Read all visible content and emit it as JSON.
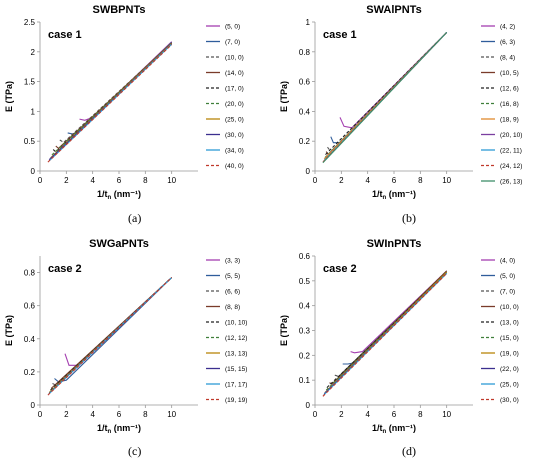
{
  "chart_data": [
    {
      "type": "line",
      "panel_label": "(a)",
      "title": "SWBPNTs",
      "annotation": "case 1",
      "xlabel": "1/t",
      "xlabel_sub": "n",
      "xlabel_unit": "(nm⁻¹)",
      "ylabel": "E (TPa)",
      "xlim": [
        0,
        12
      ],
      "ylim": [
        0,
        2.5
      ],
      "xticks": [
        0,
        2,
        4,
        6,
        8,
        10
      ],
      "yticks": [
        0,
        0.5,
        1,
        1.5,
        2,
        2.5
      ],
      "grid": false,
      "legend": "right",
      "series": [
        {
          "name": "(5, 0)",
          "color": "#a43fb0",
          "dash": "solid",
          "x": [
            3.0,
            3.4,
            4,
            10
          ],
          "y": [
            0.87,
            0.85,
            0.9,
            2.17
          ]
        },
        {
          "name": "(7, 0)",
          "color": "#2f5d9b",
          "dash": "solid",
          "x": [
            2.1,
            2.5,
            3,
            10
          ],
          "y": [
            0.64,
            0.62,
            0.68,
            2.16
          ]
        },
        {
          "name": "(10, 0)",
          "color": "#555555",
          "dash": "dash",
          "x": [
            1.5,
            1.8,
            10
          ],
          "y": [
            0.52,
            0.48,
            2.15
          ]
        },
        {
          "name": "(14, 0)",
          "color": "#7a3b2a",
          "dash": "solid",
          "x": [
            1.2,
            1.4,
            10
          ],
          "y": [
            0.42,
            0.38,
            2.15
          ]
        },
        {
          "name": "(17, 0)",
          "color": "#222222",
          "dash": "dash",
          "x": [
            1.0,
            1.2,
            10
          ],
          "y": [
            0.36,
            0.32,
            2.14
          ]
        },
        {
          "name": "(20, 0)",
          "color": "#3f7f3a",
          "dash": "dash",
          "x": [
            0.9,
            10
          ],
          "y": [
            0.27,
            2.14
          ]
        },
        {
          "name": "(25, 0)",
          "color": "#b8860b",
          "dash": "solid",
          "x": [
            0.8,
            10
          ],
          "y": [
            0.22,
            2.14
          ]
        },
        {
          "name": "(30, 0)",
          "color": "#3b2f8f",
          "dash": "solid",
          "x": [
            0.7,
            10
          ],
          "y": [
            0.19,
            2.13
          ]
        },
        {
          "name": "(34, 0)",
          "color": "#2e9bd6",
          "dash": "solid",
          "x": [
            0.7,
            10
          ],
          "y": [
            0.17,
            2.13
          ]
        },
        {
          "name": "(40, 0)",
          "color": "#c0392b",
          "dash": "dash",
          "x": [
            0.6,
            10
          ],
          "y": [
            0.15,
            2.12
          ]
        }
      ]
    },
    {
      "type": "line",
      "panel_label": "(b)",
      "title": "SWAlPNTs",
      "annotation": "case 1",
      "xlabel": "1/t",
      "xlabel_sub": "n",
      "xlabel_unit": "(nm⁻¹)",
      "ylabel": "E (TPa)",
      "xlim": [
        0,
        12
      ],
      "ylim": [
        0,
        1
      ],
      "xticks": [
        0,
        2,
        4,
        6,
        8,
        10
      ],
      "yticks": [
        0,
        0.2,
        0.4,
        0.6,
        0.8,
        1
      ],
      "grid": false,
      "legend": "right",
      "series": [
        {
          "name": "(4, 2)",
          "color": "#a43fb0",
          "dash": "solid",
          "x": [
            1.9,
            2.2,
            2.8,
            10
          ],
          "y": [
            0.36,
            0.3,
            0.29,
            0.93
          ]
        },
        {
          "name": "(6, 3)",
          "color": "#2f5d9b",
          "dash": "solid",
          "x": [
            1.2,
            1.4,
            2,
            10
          ],
          "y": [
            0.23,
            0.19,
            0.19,
            0.93
          ]
        },
        {
          "name": "(8, 4)",
          "color": "#555555",
          "dash": "dash",
          "x": [
            0.95,
            1.2,
            10
          ],
          "y": [
            0.16,
            0.13,
            0.93
          ]
        },
        {
          "name": "(10, 5)",
          "color": "#7a3b2a",
          "dash": "solid",
          "x": [
            0.85,
            1.0,
            10
          ],
          "y": [
            0.13,
            0.11,
            0.93
          ]
        },
        {
          "name": "(12, 6)",
          "color": "#222222",
          "dash": "dash",
          "x": [
            0.8,
            10
          ],
          "y": [
            0.11,
            0.93
          ]
        },
        {
          "name": "(16, 8)",
          "color": "#3f7f3a",
          "dash": "dash",
          "x": [
            0.75,
            10
          ],
          "y": [
            0.09,
            0.93
          ]
        },
        {
          "name": "(18, 9)",
          "color": "#e08a2e",
          "dash": "solid",
          "x": [
            0.7,
            10
          ],
          "y": [
            0.08,
            0.93
          ]
        },
        {
          "name": "(20, 10)",
          "color": "#7b3fa0",
          "dash": "solid",
          "x": [
            0.7,
            10
          ],
          "y": [
            0.07,
            0.93
          ]
        },
        {
          "name": "(22, 11)",
          "color": "#2e9bd6",
          "dash": "solid",
          "x": [
            0.65,
            10
          ],
          "y": [
            0.065,
            0.93
          ]
        },
        {
          "name": "(24, 12)",
          "color": "#c0392b",
          "dash": "dash",
          "x": [
            0.6,
            10
          ],
          "y": [
            0.06,
            0.93
          ]
        },
        {
          "name": "(26, 13)",
          "color": "#3f8f6a",
          "dash": "solid",
          "x": [
            0.6,
            10
          ],
          "y": [
            0.055,
            0.93
          ]
        }
      ]
    },
    {
      "type": "line",
      "panel_label": "(c)",
      "title": "SWGaPNTs",
      "annotation": "case 2",
      "xlabel": "1/t",
      "xlabel_sub": "n",
      "xlabel_unit": "(nm⁻¹)",
      "ylabel": "E (TPa)",
      "xlim": [
        0,
        12
      ],
      "ylim": [
        0,
        0.9
      ],
      "xticks": [
        0,
        2,
        4,
        6,
        8,
        10
      ],
      "yticks": [
        0,
        0.2,
        0.4,
        0.6,
        0.8
      ],
      "grid": false,
      "legend": "right",
      "series": [
        {
          "name": "(3, 3)",
          "color": "#a43fb0",
          "dash": "solid",
          "x": [
            1.9,
            2.2,
            2.8,
            10
          ],
          "y": [
            0.31,
            0.24,
            0.24,
            0.77
          ]
        },
        {
          "name": "(5, 5)",
          "color": "#2f5d9b",
          "dash": "solid",
          "x": [
            1.1,
            1.4,
            2,
            10
          ],
          "y": [
            0.16,
            0.14,
            0.15,
            0.77
          ]
        },
        {
          "name": "(6, 6)",
          "color": "#555555",
          "dash": "dash",
          "x": [
            0.95,
            1.2,
            10
          ],
          "y": [
            0.13,
            0.12,
            0.77
          ]
        },
        {
          "name": "(8, 8)",
          "color": "#7a3b2a",
          "dash": "solid",
          "x": [
            0.85,
            10
          ],
          "y": [
            0.1,
            0.77
          ]
        },
        {
          "name": "(10, 10)",
          "color": "#222222",
          "dash": "dash",
          "x": [
            0.8,
            10
          ],
          "y": [
            0.09,
            0.77
          ]
        },
        {
          "name": "(12, 12)",
          "color": "#3f7f3a",
          "dash": "dash",
          "x": [
            0.75,
            10
          ],
          "y": [
            0.08,
            0.77
          ]
        },
        {
          "name": "(13, 13)",
          "color": "#b8860b",
          "dash": "solid",
          "x": [
            0.7,
            10
          ],
          "y": [
            0.075,
            0.77
          ]
        },
        {
          "name": "(15, 15)",
          "color": "#3b2f8f",
          "dash": "solid",
          "x": [
            0.7,
            10
          ],
          "y": [
            0.07,
            0.77
          ]
        },
        {
          "name": "(17, 17)",
          "color": "#2e9bd6",
          "dash": "solid",
          "x": [
            0.65,
            10
          ],
          "y": [
            0.065,
            0.77
          ]
        },
        {
          "name": "(19, 19)",
          "color": "#c0392b",
          "dash": "dash",
          "x": [
            0.6,
            10
          ],
          "y": [
            0.06,
            0.77
          ]
        }
      ]
    },
    {
      "type": "line",
      "panel_label": "(d)",
      "title": "SWInPNTs",
      "annotation": "case 2",
      "xlabel": "1/t",
      "xlabel_sub": "n",
      "xlabel_unit": "(nm⁻¹)",
      "ylabel": "E (TPa)",
      "xlim": [
        0,
        12
      ],
      "ylim": [
        0,
        0.6
      ],
      "xticks": [
        0,
        2,
        4,
        6,
        8,
        10
      ],
      "yticks": [
        0,
        0.1,
        0.2,
        0.3,
        0.4,
        0.5,
        0.6
      ],
      "grid": false,
      "legend": "right",
      "series": [
        {
          "name": "(4, 0)",
          "color": "#a43fb0",
          "dash": "solid",
          "x": [
            2.7,
            3.0,
            3.6,
            10
          ],
          "y": [
            0.215,
            0.21,
            0.215,
            0.54
          ]
        },
        {
          "name": "(5, 0)",
          "color": "#2f5d9b",
          "dash": "solid",
          "x": [
            2.1,
            2.5,
            3,
            10
          ],
          "y": [
            0.165,
            0.165,
            0.17,
            0.54
          ]
        },
        {
          "name": "(7, 0)",
          "color": "#555555",
          "dash": "dash",
          "x": [
            1.5,
            1.8,
            10
          ],
          "y": [
            0.12,
            0.115,
            0.54
          ]
        },
        {
          "name": "(10, 0)",
          "color": "#7a3b2a",
          "dash": "solid",
          "x": [
            1.1,
            1.3,
            10
          ],
          "y": [
            0.09,
            0.085,
            0.54
          ]
        },
        {
          "name": "(13, 0)",
          "color": "#222222",
          "dash": "dash",
          "x": [
            0.9,
            10
          ],
          "y": [
            0.07,
            0.535
          ]
        },
        {
          "name": "(15, 0)",
          "color": "#3f7f3a",
          "dash": "dash",
          "x": [
            0.85,
            10
          ],
          "y": [
            0.06,
            0.535
          ]
        },
        {
          "name": "(19, 0)",
          "color": "#b8860b",
          "dash": "solid",
          "x": [
            0.75,
            10
          ],
          "y": [
            0.05,
            0.535
          ]
        },
        {
          "name": "(22, 0)",
          "color": "#3b2f8f",
          "dash": "solid",
          "x": [
            0.7,
            10
          ],
          "y": [
            0.045,
            0.53
          ]
        },
        {
          "name": "(25, 0)",
          "color": "#2e9bd6",
          "dash": "solid",
          "x": [
            0.65,
            10
          ],
          "y": [
            0.04,
            0.53
          ]
        },
        {
          "name": "(30, 0)",
          "color": "#c0392b",
          "dash": "dash",
          "x": [
            0.6,
            10
          ],
          "y": [
            0.035,
            0.53
          ]
        }
      ]
    }
  ]
}
